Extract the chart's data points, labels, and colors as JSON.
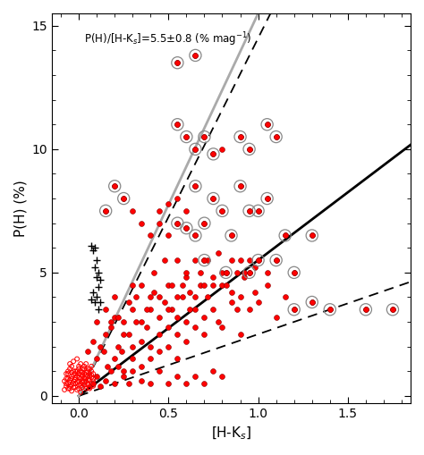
{
  "title_text": "P(H)/[H-K$_s$]=5.5±0.8 (% mag$^{-1}$)",
  "xlabel": "[H-K$_s$]",
  "ylabel": "P(H) (%)",
  "xlim": [
    -0.15,
    1.85
  ],
  "ylim": [
    -0.3,
    15.5
  ],
  "xticks": [
    0.0,
    0.5,
    1.0,
    1.5
  ],
  "yticks": [
    0,
    5,
    10,
    15
  ],
  "slope_main": 5.5,
  "slope_dashed_upper": 14.5,
  "slope_dashed_lower": 2.5,
  "slope_gray": 15.5,
  "figsize": [
    4.74,
    5.09
  ],
  "dpi": 100,
  "open_red_circles": [
    [
      -0.08,
      0.25
    ],
    [
      -0.07,
      0.4
    ],
    [
      -0.06,
      0.5
    ],
    [
      -0.05,
      0.3
    ],
    [
      -0.05,
      0.65
    ],
    [
      -0.04,
      0.45
    ],
    [
      -0.04,
      0.8
    ],
    [
      -0.03,
      0.35
    ],
    [
      -0.03,
      0.6
    ],
    [
      -0.02,
      0.5
    ],
    [
      -0.02,
      0.75
    ],
    [
      -0.01,
      0.25
    ],
    [
      -0.01,
      0.55
    ],
    [
      0.0,
      0.3
    ],
    [
      0.0,
      0.6
    ],
    [
      0.0,
      0.9
    ],
    [
      0.01,
      0.4
    ],
    [
      0.01,
      0.7
    ],
    [
      0.01,
      1.0
    ],
    [
      0.02,
      0.35
    ],
    [
      0.02,
      0.55
    ],
    [
      0.02,
      0.85
    ],
    [
      0.03,
      0.45
    ],
    [
      0.03,
      0.7
    ],
    [
      0.04,
      0.3
    ],
    [
      0.04,
      0.6
    ],
    [
      0.04,
      0.95
    ],
    [
      0.05,
      0.5
    ],
    [
      0.05,
      0.8
    ],
    [
      0.06,
      0.35
    ],
    [
      0.06,
      0.65
    ],
    [
      0.07,
      0.4
    ],
    [
      0.07,
      0.75
    ],
    [
      -0.06,
      0.9
    ],
    [
      -0.05,
      1.1
    ],
    [
      -0.04,
      0.2
    ],
    [
      -0.03,
      1.0
    ],
    [
      -0.02,
      0.35
    ],
    [
      0.0,
      1.2
    ],
    [
      0.01,
      0.15
    ],
    [
      0.02,
      1.1
    ],
    [
      0.03,
      0.9
    ],
    [
      0.04,
      0.4
    ],
    [
      0.05,
      1.0
    ],
    [
      0.06,
      0.8
    ],
    [
      0.07,
      0.5
    ],
    [
      0.08,
      0.6
    ],
    [
      0.08,
      0.9
    ],
    [
      -0.07,
      0.7
    ],
    [
      -0.06,
      0.3
    ],
    [
      -0.05,
      0.55
    ],
    [
      -0.04,
      0.7
    ],
    [
      -0.03,
      0.85
    ],
    [
      -0.02,
      1.0
    ],
    [
      -0.01,
      0.8
    ],
    [
      0.0,
      0.45
    ],
    [
      0.01,
      0.85
    ],
    [
      0.02,
      0.6
    ],
    [
      0.03,
      1.1
    ],
    [
      0.04,
      0.7
    ],
    [
      0.05,
      0.45
    ],
    [
      0.06,
      1.1
    ],
    [
      0.07,
      0.85
    ],
    [
      0.08,
      0.4
    ],
    [
      -0.08,
      0.6
    ],
    [
      -0.07,
      0.9
    ],
    [
      -0.06,
      0.7
    ],
    [
      -0.05,
      0.4
    ],
    [
      -0.04,
      0.95
    ],
    [
      -0.03,
      0.5
    ],
    [
      -0.02,
      0.65
    ],
    [
      -0.01,
      1.0
    ],
    [
      0.0,
      0.75
    ],
    [
      0.01,
      0.5
    ],
    [
      0.02,
      0.95
    ],
    [
      0.03,
      0.6
    ],
    [
      0.04,
      0.85
    ],
    [
      0.05,
      0.65
    ],
    [
      0.06,
      0.3
    ],
    [
      0.07,
      1.0
    ],
    [
      -0.05,
      1.3
    ],
    [
      -0.03,
      1.4
    ],
    [
      -0.01,
      1.5
    ],
    [
      0.01,
      1.3
    ],
    [
      0.03,
      1.2
    ],
    [
      0.05,
      1.1
    ],
    [
      0.07,
      1.2
    ],
    [
      0.08,
      0.7
    ],
    [
      -0.07,
      0.5
    ],
    [
      -0.06,
      1.0
    ],
    [
      -0.04,
      1.2
    ],
    [
      -0.02,
      0.9
    ],
    [
      0.0,
      1.1
    ],
    [
      0.02,
      0.8
    ],
    [
      0.04,
      1.3
    ],
    [
      0.06,
      0.9
    ]
  ],
  "cross_markers": [
    [
      0.07,
      6.1
    ],
    [
      0.08,
      5.9
    ],
    [
      0.09,
      5.2
    ],
    [
      0.1,
      5.5
    ],
    [
      0.1,
      4.8
    ],
    [
      0.11,
      5.0
    ],
    [
      0.11,
      4.4
    ],
    [
      0.12,
      4.7
    ],
    [
      0.08,
      4.2
    ],
    [
      0.09,
      3.8
    ],
    [
      0.1,
      4.0
    ],
    [
      0.11,
      3.5
    ],
    [
      0.07,
      3.9
    ],
    [
      0.09,
      6.0
    ],
    [
      0.12,
      3.8
    ]
  ],
  "filled_red_circles": [
    [
      0.05,
      1.8
    ],
    [
      0.08,
      2.2
    ],
    [
      0.1,
      1.5
    ],
    [
      0.12,
      2.0
    ],
    [
      0.14,
      1.8
    ],
    [
      0.15,
      2.5
    ],
    [
      0.16,
      1.2
    ],
    [
      0.18,
      2.8
    ],
    [
      0.2,
      1.5
    ],
    [
      0.2,
      3.2
    ],
    [
      0.22,
      2.0
    ],
    [
      0.24,
      1.8
    ],
    [
      0.25,
      3.0
    ],
    [
      0.25,
      1.0
    ],
    [
      0.28,
      2.5
    ],
    [
      0.3,
      3.5
    ],
    [
      0.3,
      1.5
    ],
    [
      0.3,
      2.0
    ],
    [
      0.32,
      4.0
    ],
    [
      0.35,
      2.2
    ],
    [
      0.35,
      3.0
    ],
    [
      0.35,
      1.2
    ],
    [
      0.38,
      2.8
    ],
    [
      0.4,
      3.5
    ],
    [
      0.4,
      2.0
    ],
    [
      0.4,
      1.5
    ],
    [
      0.42,
      4.2
    ],
    [
      0.45,
      3.2
    ],
    [
      0.45,
      2.5
    ],
    [
      0.45,
      1.8
    ],
    [
      0.48,
      3.8
    ],
    [
      0.5,
      2.8
    ],
    [
      0.5,
      4.5
    ],
    [
      0.5,
      2.0
    ],
    [
      0.52,
      3.5
    ],
    [
      0.55,
      4.0
    ],
    [
      0.55,
      2.5
    ],
    [
      0.55,
      3.2
    ],
    [
      0.55,
      1.5
    ],
    [
      0.58,
      4.5
    ],
    [
      0.6,
      3.0
    ],
    [
      0.6,
      2.2
    ],
    [
      0.6,
      4.8
    ],
    [
      0.62,
      3.5
    ],
    [
      0.65,
      4.0
    ],
    [
      0.65,
      2.8
    ],
    [
      0.65,
      3.5
    ],
    [
      0.68,
      4.5
    ],
    [
      0.7,
      3.2
    ],
    [
      0.7,
      5.5
    ],
    [
      0.7,
      2.5
    ],
    [
      0.72,
      4.0
    ],
    [
      0.75,
      3.5
    ],
    [
      0.75,
      4.8
    ],
    [
      0.78,
      3.0
    ],
    [
      0.8,
      4.5
    ],
    [
      0.8,
      2.8
    ],
    [
      0.82,
      5.0
    ],
    [
      0.85,
      3.8
    ],
    [
      0.85,
      4.2
    ],
    [
      0.88,
      3.5
    ],
    [
      0.9,
      4.0
    ],
    [
      0.9,
      2.5
    ],
    [
      0.92,
      4.8
    ],
    [
      0.95,
      3.5
    ],
    [
      0.95,
      5.0
    ],
    [
      0.98,
      4.2
    ],
    [
      1.0,
      3.8
    ],
    [
      1.05,
      4.5
    ],
    [
      1.1,
      3.2
    ],
    [
      1.15,
      4.0
    ],
    [
      1.2,
      3.5
    ],
    [
      1.3,
      3.8
    ],
    [
      1.4,
      3.5
    ],
    [
      1.6,
      3.5
    ],
    [
      1.75,
      3.5
    ],
    [
      0.1,
      3.0
    ],
    [
      0.15,
      3.5
    ],
    [
      0.18,
      3.0
    ],
    [
      0.2,
      4.0
    ],
    [
      0.22,
      3.2
    ],
    [
      0.25,
      2.5
    ],
    [
      0.28,
      3.8
    ],
    [
      0.3,
      4.5
    ],
    [
      0.32,
      3.0
    ],
    [
      0.35,
      4.5
    ],
    [
      0.38,
      3.5
    ],
    [
      0.4,
      4.0
    ],
    [
      0.42,
      5.0
    ],
    [
      0.45,
      4.0
    ],
    [
      0.48,
      5.5
    ],
    [
      0.5,
      3.5
    ],
    [
      0.52,
      4.5
    ],
    [
      0.55,
      5.5
    ],
    [
      0.58,
      4.0
    ],
    [
      0.6,
      5.0
    ],
    [
      0.62,
      4.2
    ],
    [
      0.65,
      5.5
    ],
    [
      0.68,
      5.0
    ],
    [
      0.7,
      4.5
    ],
    [
      0.72,
      5.5
    ],
    [
      0.75,
      4.5
    ],
    [
      0.78,
      5.8
    ],
    [
      0.8,
      5.0
    ],
    [
      0.82,
      4.5
    ],
    [
      0.85,
      5.5
    ],
    [
      0.88,
      5.0
    ],
    [
      0.9,
      5.5
    ],
    [
      0.92,
      5.0
    ],
    [
      0.95,
      5.5
    ],
    [
      0.98,
      5.2
    ],
    [
      1.0,
      5.5
    ],
    [
      1.05,
      5.0
    ],
    [
      1.1,
      5.5
    ],
    [
      1.2,
      5.0
    ],
    [
      0.15,
      7.5
    ],
    [
      0.2,
      8.5
    ],
    [
      0.25,
      8.0
    ],
    [
      0.3,
      7.5
    ],
    [
      0.35,
      7.0
    ],
    [
      0.4,
      6.5
    ],
    [
      0.45,
      7.0
    ],
    [
      0.5,
      6.5
    ],
    [
      0.55,
      7.0
    ],
    [
      0.6,
      6.8
    ],
    [
      0.65,
      6.5
    ],
    [
      0.45,
      7.5
    ],
    [
      0.5,
      7.8
    ],
    [
      0.55,
      8.0
    ],
    [
      0.6,
      7.5
    ],
    [
      0.65,
      8.5
    ],
    [
      0.7,
      7.0
    ],
    [
      0.75,
      8.0
    ],
    [
      0.8,
      7.5
    ],
    [
      0.85,
      6.5
    ],
    [
      0.9,
      8.5
    ],
    [
      0.95,
      7.5
    ],
    [
      1.0,
      7.5
    ],
    [
      1.05,
      8.0
    ],
    [
      1.15,
      6.5
    ],
    [
      1.3,
      6.5
    ],
    [
      0.55,
      11.0
    ],
    [
      0.6,
      10.5
    ],
    [
      0.65,
      10.0
    ],
    [
      0.7,
      10.5
    ],
    [
      0.75,
      9.8
    ],
    [
      0.8,
      10.0
    ],
    [
      0.9,
      10.5
    ],
    [
      0.95,
      10.0
    ],
    [
      1.05,
      11.0
    ],
    [
      1.1,
      10.5
    ],
    [
      0.55,
      13.5
    ],
    [
      0.65,
      13.8
    ],
    [
      0.08,
      0.5
    ],
    [
      0.1,
      0.8
    ],
    [
      0.12,
      0.4
    ],
    [
      0.15,
      0.6
    ],
    [
      0.18,
      1.0
    ],
    [
      0.2,
      0.5
    ],
    [
      0.22,
      1.2
    ],
    [
      0.25,
      0.8
    ],
    [
      0.28,
      0.5
    ],
    [
      0.3,
      1.0
    ],
    [
      0.35,
      0.6
    ],
    [
      0.4,
      0.5
    ],
    [
      0.45,
      1.0
    ],
    [
      0.5,
      0.5
    ],
    [
      0.55,
      0.8
    ],
    [
      0.6,
      0.5
    ],
    [
      0.65,
      0.8
    ],
    [
      0.7,
      0.5
    ],
    [
      0.75,
      1.0
    ],
    [
      0.8,
      0.8
    ]
  ],
  "circled_pts": [
    [
      0.55,
      13.5
    ],
    [
      0.65,
      13.8
    ],
    [
      0.55,
      11.0
    ],
    [
      0.6,
      10.5
    ],
    [
      1.05,
      11.0
    ],
    [
      1.1,
      10.5
    ],
    [
      0.65,
      10.0
    ],
    [
      0.7,
      10.5
    ],
    [
      0.75,
      9.8
    ],
    [
      0.9,
      10.5
    ],
    [
      0.95,
      10.0
    ],
    [
      0.9,
      8.5
    ],
    [
      1.0,
      7.5
    ],
    [
      1.05,
      8.0
    ],
    [
      1.3,
      6.5
    ],
    [
      0.65,
      8.5
    ],
    [
      0.75,
      8.0
    ],
    [
      0.85,
      6.5
    ],
    [
      1.15,
      6.5
    ],
    [
      0.7,
      7.0
    ],
    [
      0.8,
      7.5
    ],
    [
      0.95,
      7.5
    ],
    [
      0.7,
      5.5
    ],
    [
      0.82,
      5.0
    ],
    [
      0.95,
      5.0
    ],
    [
      1.0,
      5.5
    ],
    [
      1.1,
      5.5
    ],
    [
      1.2,
      5.0
    ],
    [
      1.4,
      3.5
    ],
    [
      1.6,
      3.5
    ],
    [
      1.75,
      3.5
    ],
    [
      0.25,
      8.0
    ],
    [
      0.2,
      8.5
    ],
    [
      0.15,
      7.5
    ],
    [
      1.2,
      3.5
    ],
    [
      1.3,
      3.8
    ],
    [
      0.55,
      7.0
    ],
    [
      0.6,
      6.8
    ],
    [
      0.65,
      6.5
    ]
  ]
}
